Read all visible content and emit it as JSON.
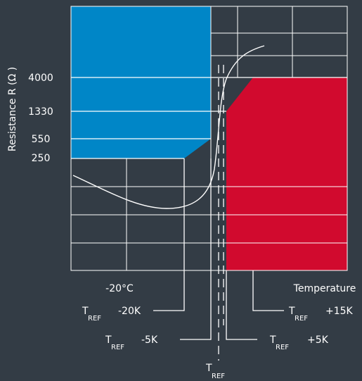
{
  "colors": {
    "background": "#333c45",
    "cold_zone": "#0086c7",
    "hot_zone": "#d10a2e",
    "lines": "#ffffff"
  },
  "axis": {
    "y_label": "Resistance R (Ω )",
    "x_label": "Temperature"
  },
  "resistance_levels": [
    "4000",
    "1330",
    "550",
    "250"
  ],
  "temperature_marks": {
    "minus20c": "-20°C",
    "tref_minus20k": {
      "t": "T",
      "sub": "REF",
      "offset": "-20K"
    },
    "tref_minus5k": {
      "t": "T",
      "sub": "REF",
      "offset": "-5K"
    },
    "tref": {
      "t": "T",
      "sub": "REF"
    },
    "tref_plus5k": {
      "t": "T",
      "sub": "REF",
      "offset": "+5K"
    },
    "tref_plus15k": {
      "t": "T",
      "sub": "REF",
      "offset": "+15K"
    }
  }
}
